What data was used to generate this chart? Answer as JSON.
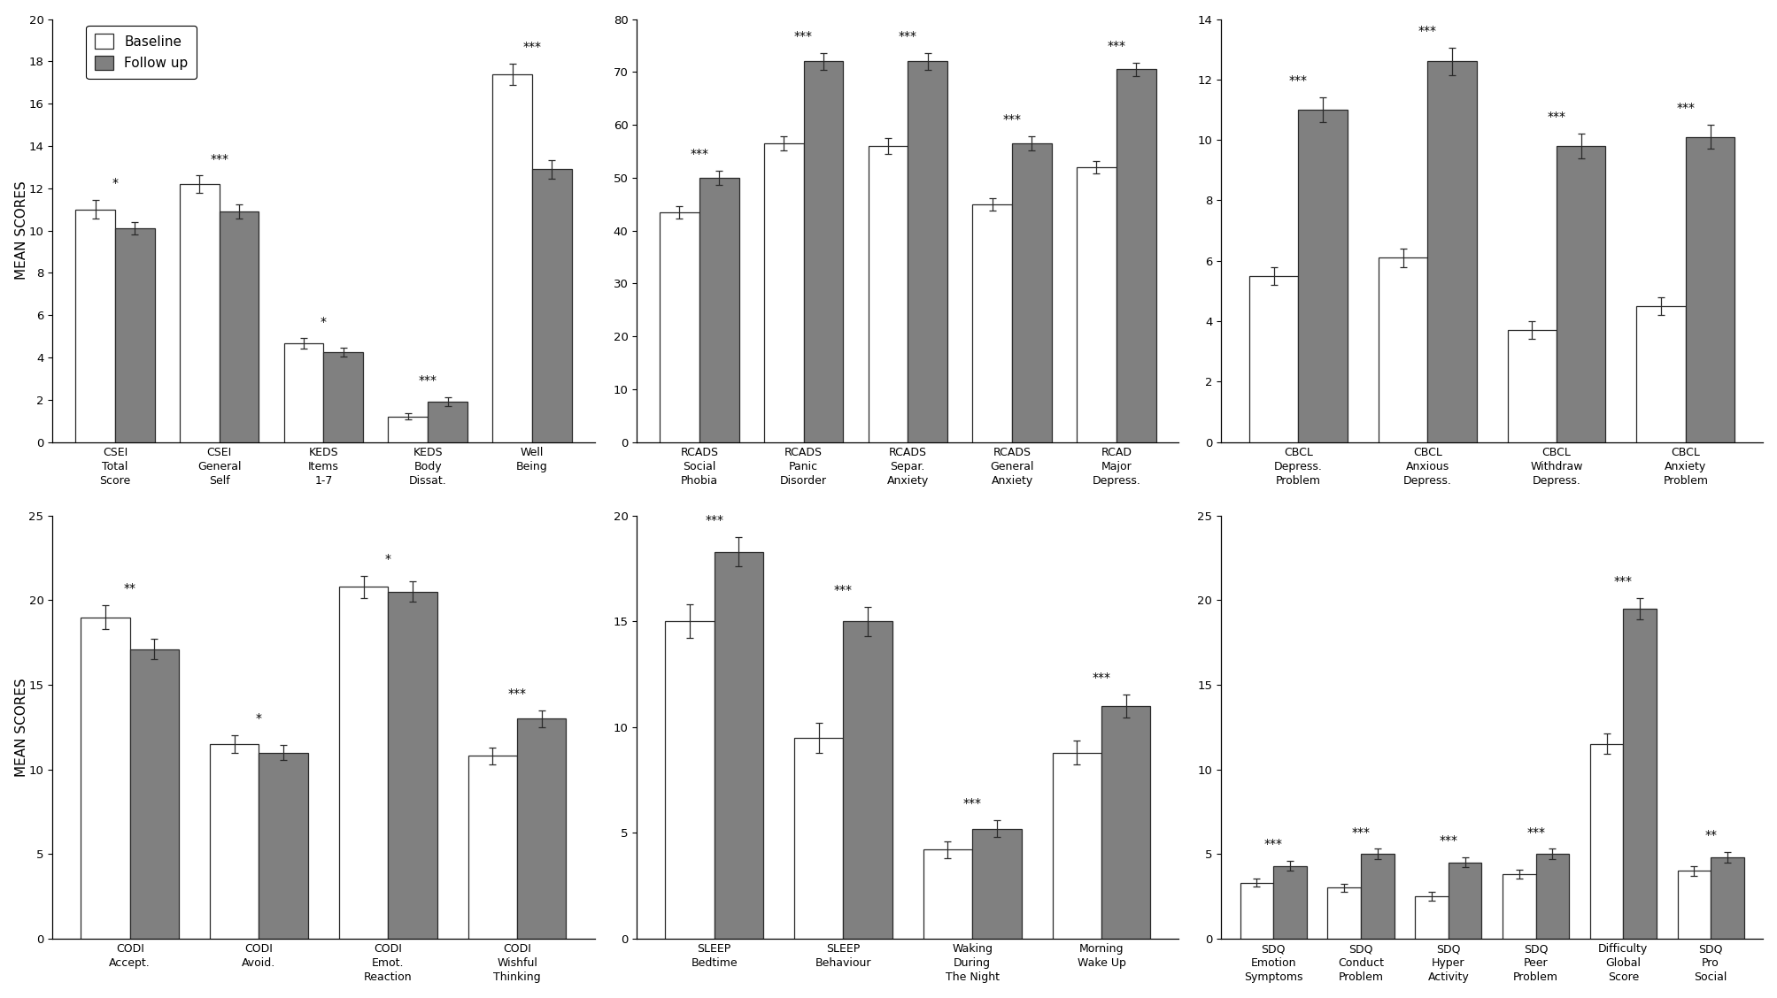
{
  "panels": [
    {
      "ylim": [
        0,
        20
      ],
      "yticks": [
        0,
        2,
        4,
        6,
        8,
        10,
        12,
        14,
        16,
        18,
        20
      ],
      "groups": [
        {
          "label": "CSEI\nTotal\nScore",
          "baseline": 11.0,
          "followup": 10.1,
          "baseline_err": 0.45,
          "followup_err": 0.3,
          "sig": "*"
        },
        {
          "label": "CSEI\nGeneral\nSelf",
          "baseline": 12.2,
          "followup": 10.9,
          "baseline_err": 0.4,
          "followup_err": 0.35,
          "sig": "***"
        },
        {
          "label": "KEDS\nItems\n1-7",
          "baseline": 4.65,
          "followup": 4.25,
          "baseline_err": 0.25,
          "followup_err": 0.2,
          "sig": "*"
        },
        {
          "label": "KEDS\nBody\nDissat.",
          "baseline": 1.2,
          "followup": 1.9,
          "baseline_err": 0.15,
          "followup_err": 0.2,
          "sig": "***"
        },
        {
          "label": "Well\nBeing",
          "baseline": 17.4,
          "followup": 12.9,
          "baseline_err": 0.5,
          "followup_err": 0.45,
          "sig": "***"
        }
      ],
      "show_legend": true
    },
    {
      "ylim": [
        0,
        80
      ],
      "yticks": [
        0,
        10,
        20,
        30,
        40,
        50,
        60,
        70,
        80
      ],
      "groups": [
        {
          "label": "RCADS\nSocial\nPhobia",
          "baseline": 43.5,
          "followup": 50.0,
          "baseline_err": 1.2,
          "followup_err": 1.3,
          "sig": "***"
        },
        {
          "label": "RCADS\nPanic\nDisorder",
          "baseline": 56.5,
          "followup": 72.0,
          "baseline_err": 1.3,
          "followup_err": 1.6,
          "sig": "***"
        },
        {
          "label": "RCADS\nSepar.\nAnxiety",
          "baseline": 56.0,
          "followup": 72.0,
          "baseline_err": 1.5,
          "followup_err": 1.6,
          "sig": "***"
        },
        {
          "label": "RCADS\nGeneral\nAnxiety",
          "baseline": 45.0,
          "followup": 56.5,
          "baseline_err": 1.2,
          "followup_err": 1.3,
          "sig": "***"
        },
        {
          "label": "RCAD\nMajor\nDepress.",
          "baseline": 52.0,
          "followup": 70.5,
          "baseline_err": 1.2,
          "followup_err": 1.3,
          "sig": "***"
        }
      ],
      "show_legend": false
    },
    {
      "ylim": [
        0,
        14
      ],
      "yticks": [
        0,
        2,
        4,
        6,
        8,
        10,
        12,
        14
      ],
      "groups": [
        {
          "label": "CBCL\nDepress.\nProblem",
          "baseline": 5.5,
          "followup": 11.0,
          "baseline_err": 0.3,
          "followup_err": 0.4,
          "sig": "***"
        },
        {
          "label": "CBCL\nAnxious\nDepress.",
          "baseline": 6.1,
          "followup": 12.6,
          "baseline_err": 0.3,
          "followup_err": 0.45,
          "sig": "***"
        },
        {
          "label": "CBCL\nWithdraw\nDepress.",
          "baseline": 3.7,
          "followup": 9.8,
          "baseline_err": 0.3,
          "followup_err": 0.4,
          "sig": "***"
        },
        {
          "label": "CBCL\nAnxiety\nProblem",
          "baseline": 4.5,
          "followup": 10.1,
          "baseline_err": 0.3,
          "followup_err": 0.4,
          "sig": "***"
        }
      ],
      "show_legend": false
    },
    {
      "ylim": [
        0,
        25
      ],
      "yticks": [
        0,
        5,
        10,
        15,
        20,
        25
      ],
      "groups": [
        {
          "label": "CODI\nAccept.",
          "baseline": 19.0,
          "followup": 17.1,
          "baseline_err": 0.7,
          "followup_err": 0.6,
          "sig": "**"
        },
        {
          "label": "CODI\nAvoid.",
          "baseline": 11.5,
          "followup": 11.0,
          "baseline_err": 0.5,
          "followup_err": 0.45,
          "sig": "*"
        },
        {
          "label": "CODI\nEmot.\nReaction",
          "baseline": 20.8,
          "followup": 20.5,
          "baseline_err": 0.65,
          "followup_err": 0.6,
          "sig": "*"
        },
        {
          "label": "CODI\nWishful\nThinking",
          "baseline": 10.8,
          "followup": 13.0,
          "baseline_err": 0.5,
          "followup_err": 0.5,
          "sig": "***"
        }
      ],
      "show_legend": false
    },
    {
      "ylim": [
        0,
        20
      ],
      "yticks": [
        0,
        5,
        10,
        15,
        20
      ],
      "groups": [
        {
          "label": "SLEEP\nBedtime",
          "baseline": 15.0,
          "followup": 18.3,
          "baseline_err": 0.8,
          "followup_err": 0.7,
          "sig": "***"
        },
        {
          "label": "SLEEP\nBehaviour",
          "baseline": 9.5,
          "followup": 15.0,
          "baseline_err": 0.7,
          "followup_err": 0.7,
          "sig": "***"
        },
        {
          "label": "Waking\nDuring\nThe Night",
          "baseline": 4.2,
          "followup": 5.2,
          "baseline_err": 0.4,
          "followup_err": 0.4,
          "sig": "***"
        },
        {
          "label": "Morning\nWake Up",
          "baseline": 8.8,
          "followup": 11.0,
          "baseline_err": 0.55,
          "followup_err": 0.55,
          "sig": "***"
        }
      ],
      "show_legend": false
    },
    {
      "ylim": [
        0,
        25
      ],
      "yticks": [
        0,
        5,
        10,
        15,
        20,
        25
      ],
      "groups": [
        {
          "label": "SDQ\nEmotion\nSymptoms",
          "baseline": 3.3,
          "followup": 4.3,
          "baseline_err": 0.25,
          "followup_err": 0.28,
          "sig": "***"
        },
        {
          "label": "SDQ\nConduct\nProblem",
          "baseline": 3.0,
          "followup": 5.0,
          "baseline_err": 0.25,
          "followup_err": 0.3,
          "sig": "***"
        },
        {
          "label": "SDQ\nHyper\nActivity",
          "baseline": 2.5,
          "followup": 4.5,
          "baseline_err": 0.25,
          "followup_err": 0.28,
          "sig": "***"
        },
        {
          "label": "SDQ\nPeer\nProblem",
          "baseline": 3.8,
          "followup": 5.0,
          "baseline_err": 0.28,
          "followup_err": 0.3,
          "sig": "***"
        },
        {
          "label": "Difficulty\nGlobal\nScore",
          "baseline": 11.5,
          "followup": 19.5,
          "baseline_err": 0.6,
          "followup_err": 0.65,
          "sig": "***"
        },
        {
          "label": "SDQ\nPro\nSocial",
          "baseline": 4.0,
          "followup": 4.8,
          "baseline_err": 0.3,
          "followup_err": 0.3,
          "sig": "**"
        }
      ],
      "show_legend": false
    }
  ],
  "baseline_color": "#ffffff",
  "followup_color": "#808080",
  "bar_edge_color": "#2a2a2a",
  "error_color": "#2a2a2a",
  "bar_width": 0.38,
  "ylabel": "MEAN SCORES",
  "background_color": "#ffffff",
  "sig_fontsize": 10,
  "tick_fontsize": 9.5,
  "label_fontsize": 9,
  "legend_fontsize": 11
}
